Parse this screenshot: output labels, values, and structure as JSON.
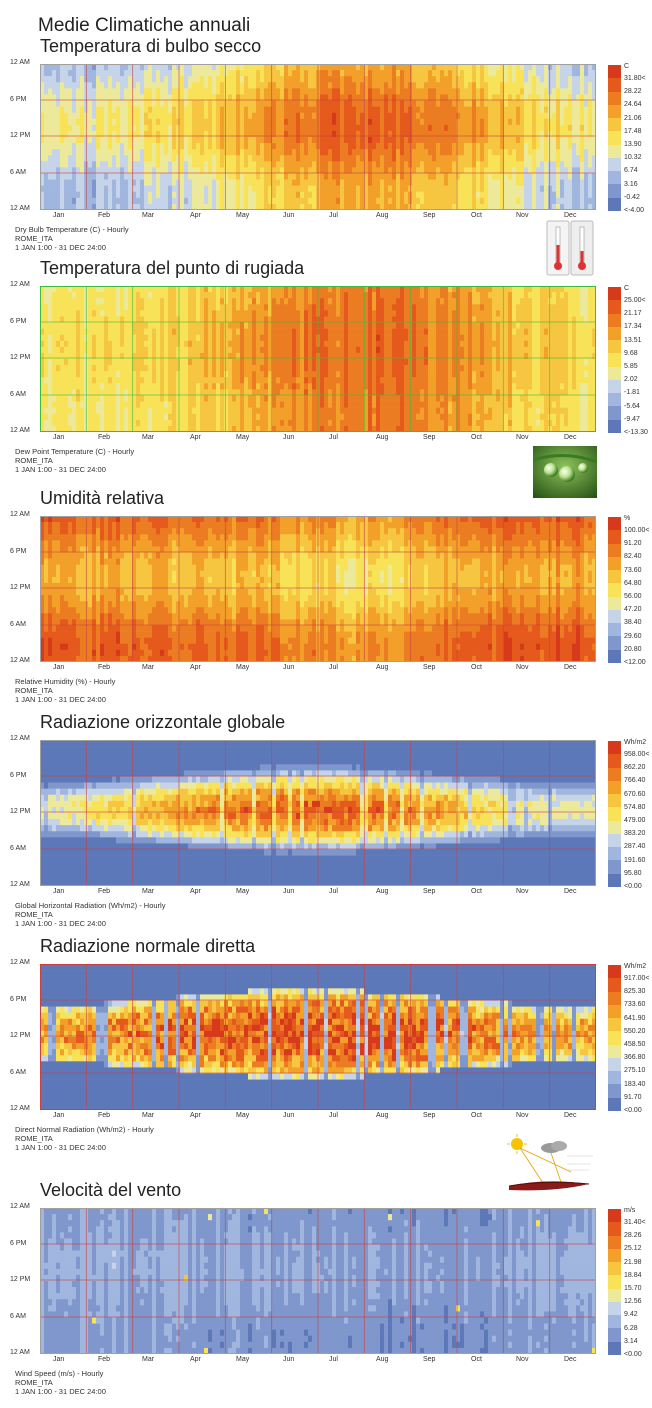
{
  "title": "Medie Climatiche annuali",
  "months": [
    "Jan",
    "Feb",
    "Mar",
    "Apr",
    "May",
    "Jun",
    "Jul",
    "Aug",
    "Sep",
    "Oct",
    "Nov",
    "Dec"
  ],
  "hour_labels": [
    "12 AM",
    "6 PM",
    "12 PM",
    "6 AM",
    "12 AM"
  ],
  "charts": [
    {
      "heading": "Temperatura di bulbo secco",
      "caption": "Dry Bulb Temperature (C) - Hourly",
      "location": "ROME_ITA",
      "period": "1 JAN 1:00 - 31 DEC 24:00",
      "unit": "C",
      "legend": [
        "31.80<",
        "28.22",
        "24.64",
        "21.06",
        "17.48",
        "13.90",
        "10.32",
        "6.74",
        "3.16",
        "-0.42",
        "<-4.00"
      ],
      "grid_color": "#c84040",
      "frame_color": "#a0a0a0",
      "chart_data": {
        "type": "heatmap",
        "x": "months",
        "y": "hour of day",
        "range": [
          -4.0,
          31.8
        ],
        "monthly_mean": [
          7,
          8,
          10,
          13,
          17,
          21,
          24,
          24,
          21,
          17,
          12,
          9
        ],
        "daily_swing": 8
      }
    },
    {
      "heading": "Temperatura del punto di rugiada",
      "caption": "Dew Point Temperature (C) - Hourly",
      "location": "ROME_ITA",
      "period": "1 JAN 1:00 - 31 DEC 24:00",
      "unit": "C",
      "legend": [
        "25.00<",
        "21.17",
        "17.34",
        "13.51",
        "9.68",
        "5.85",
        "2.02",
        "-1.81",
        "-5.64",
        "-9.47",
        "<-13.30"
      ],
      "grid_color": "#3cbc3c",
      "frame_color": "#3cbc3c",
      "chart_data": {
        "type": "heatmap",
        "x": "months",
        "y": "hour of day",
        "range": [
          -13.3,
          25.0
        ],
        "monthly_mean": [
          5,
          5,
          7,
          9,
          13,
          16,
          18,
          19,
          16,
          13,
          9,
          6
        ],
        "daily_swing": 2
      }
    },
    {
      "heading": "Umidità relativa",
      "caption": "Relative Humidity (%) - Hourly",
      "location": "ROME_ITA",
      "period": "1 JAN 1:00 - 31 DEC 24:00",
      "unit": "%",
      "legend": [
        "100.00<",
        "91.20",
        "82.40",
        "73.60",
        "64.80",
        "56.00",
        "47.20",
        "38.40",
        "29.60",
        "20.80",
        "<12.00"
      ],
      "grid_color": "#c84040",
      "frame_color": "#a0a0a0",
      "chart_data": {
        "type": "heatmap",
        "x": "months",
        "y": "hour of day",
        "range": [
          12.0,
          100.0
        ],
        "monthly_mean": [
          82,
          80,
          78,
          76,
          74,
          70,
          66,
          68,
          74,
          80,
          82,
          84
        ],
        "daily_swing": 22
      }
    },
    {
      "heading": "Radiazione orizzontale globale",
      "caption": "Global Horizontal Radiation (Wh/m2) - Hourly",
      "location": "ROME_ITA",
      "period": "1 JAN 1:00 - 31 DEC 24:00",
      "unit": "Wh/m2",
      "legend": [
        "958.00<",
        "862.20",
        "766.40",
        "670.60",
        "574.80",
        "479.00",
        "383.20",
        "287.40",
        "191.60",
        "95.80",
        "<0.00"
      ],
      "grid_color": "#c84040",
      "frame_color": "#a0a0a0",
      "chart_data": {
        "type": "heatmap",
        "x": "months",
        "y": "hour of day",
        "range": [
          0.0,
          958.0
        ],
        "monthly_peak": [
          450,
          560,
          700,
          800,
          880,
          920,
          930,
          860,
          740,
          580,
          450,
          400
        ],
        "day_length_hours": [
          9.5,
          10.5,
          12,
          13,
          14.5,
          15,
          14.8,
          14,
          12.5,
          11,
          10,
          9.3
        ]
      }
    },
    {
      "heading": "Radiazione normale diretta",
      "caption": "Direct Normal Radiation (Wh/m2) - Hourly",
      "location": "ROME_ITA",
      "period": "1 JAN 1:00 - 31 DEC 24:00",
      "unit": "Wh/m2",
      "legend": [
        "917.00<",
        "825.30",
        "733.60",
        "641.90",
        "550.20",
        "458.50",
        "366.80",
        "275.10",
        "183.40",
        "91.70",
        "<0.00"
      ],
      "grid_color": "#c84040",
      "frame_color": "#c84040",
      "chart_data": {
        "type": "heatmap",
        "x": "months",
        "y": "hour of day",
        "range": [
          0.0,
          917.0
        ],
        "monthly_peak": [
          650,
          700,
          760,
          800,
          820,
          840,
          860,
          840,
          790,
          720,
          650,
          620
        ],
        "day_length_hours": [
          9.5,
          10.5,
          12,
          13,
          14.5,
          15,
          14.8,
          14,
          12.5,
          11,
          10,
          9.3
        ]
      }
    },
    {
      "heading": "Velocità del vento",
      "caption": "Wind Speed (m/s) - Hourly",
      "location": "ROME_ITA",
      "period": "1 JAN 1:00 - 31 DEC 24:00",
      "unit": "m/s",
      "legend": [
        "31.40<",
        "28.26",
        "25.12",
        "21.98",
        "18.84",
        "15.70",
        "12.56",
        "9.42",
        "6.28",
        "3.14",
        "<0.00"
      ],
      "grid_color": "#c84040",
      "frame_color": "#a0a0a0",
      "chart_data": {
        "type": "heatmap",
        "x": "months",
        "y": "hour of day",
        "range": [
          0.0,
          31.4
        ],
        "monthly_mean": [
          4.5,
          4.8,
          4.6,
          4.2,
          3.8,
          3.6,
          3.7,
          3.5,
          3.4,
          3.6,
          4.2,
          4.4
        ],
        "daily_swing": 2
      }
    }
  ],
  "scale_colors": [
    "#d73a1a",
    "#e55a1c",
    "#ec7c22",
    "#f2a029",
    "#f6c640",
    "#f8e258",
    "#ece99a",
    "#c5d4e8",
    "#a1b6de",
    "#7f97cc",
    "#5d78b8"
  ]
}
